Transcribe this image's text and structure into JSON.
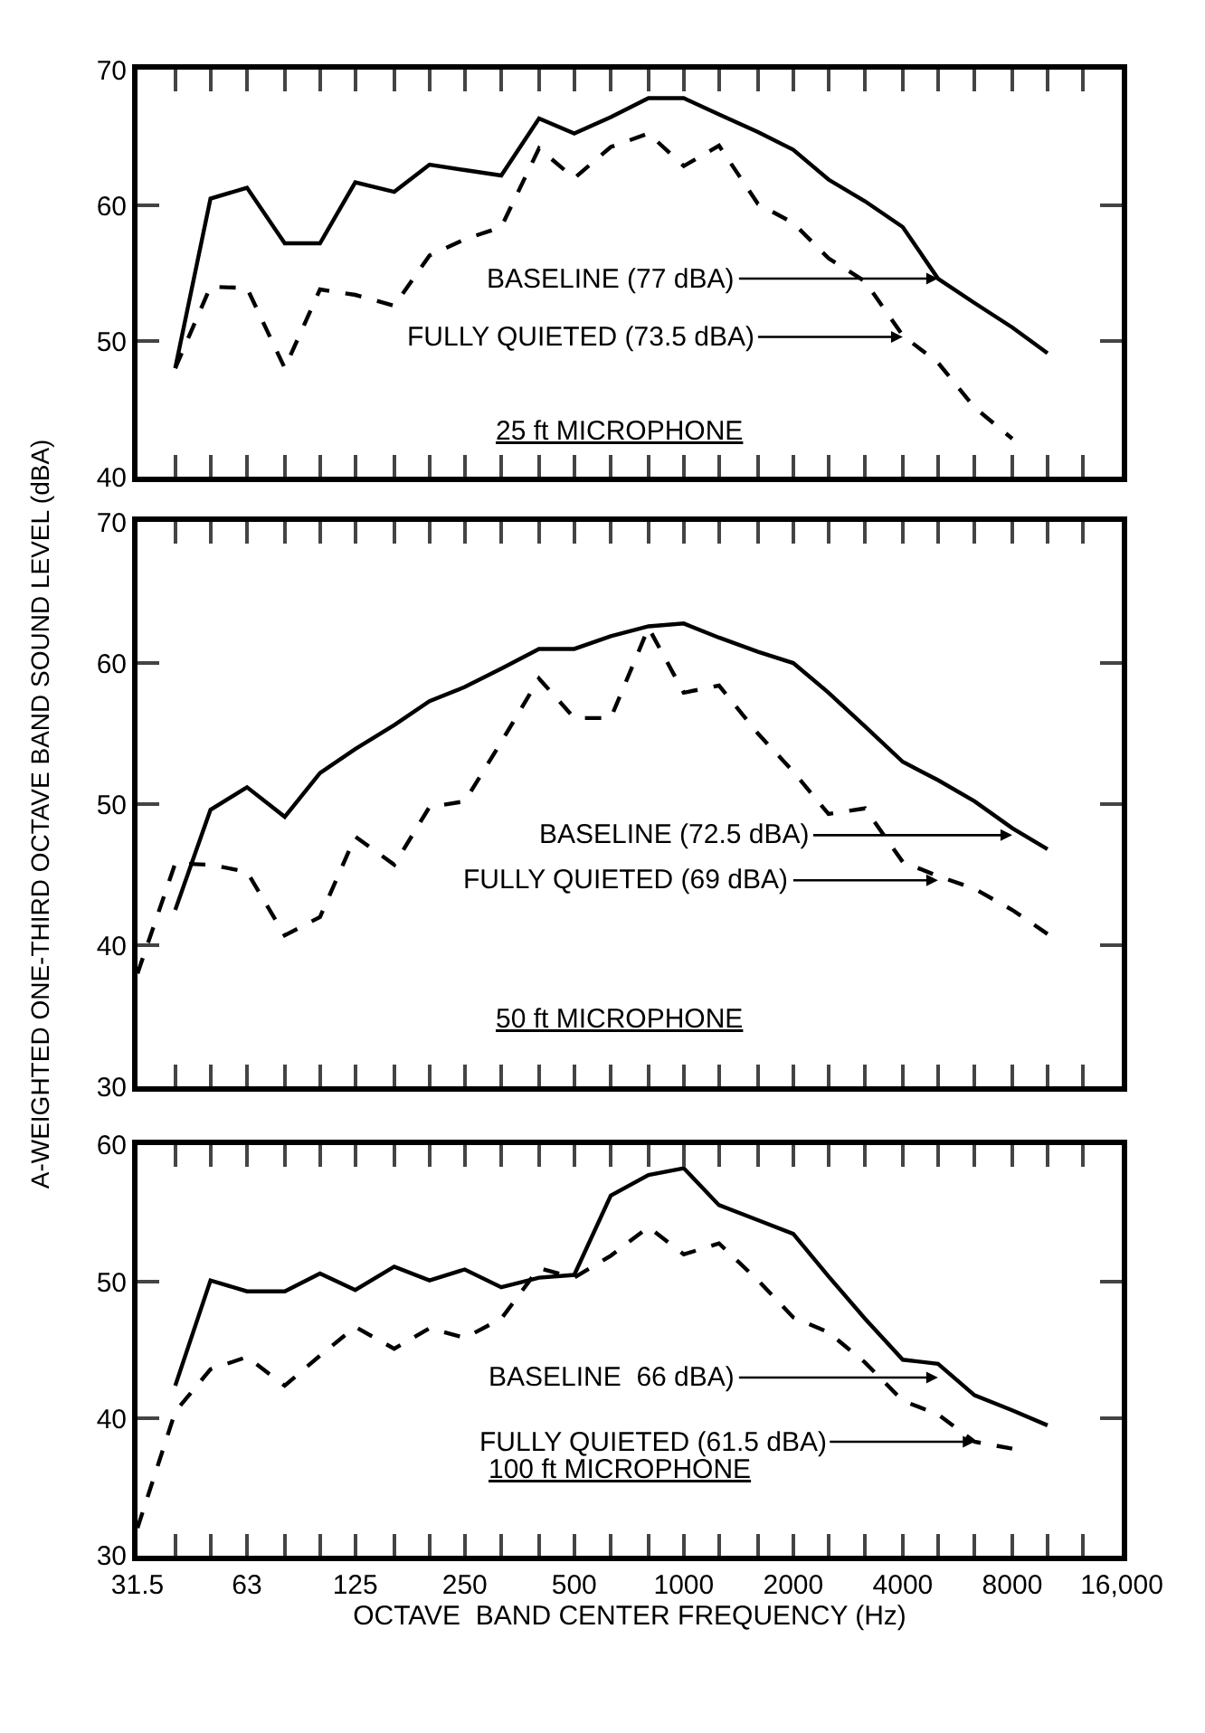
{
  "chart_data": [
    {
      "type": "line",
      "x": [
        40,
        50,
        63,
        80,
        100,
        125,
        160,
        200,
        250,
        315,
        400,
        500,
        630,
        800,
        1000,
        1250,
        1600,
        2000,
        2500,
        3150,
        4000,
        5000,
        6300,
        8000,
        10000
      ],
      "series": [
        {
          "color": "#000000",
          "line_style": "solid",
          "values": [
            48,
            60.5,
            61.3,
            57.2,
            57.2,
            61.7,
            61,
            63,
            62.6,
            62.2,
            66.4,
            65.3,
            66.5,
            67.9,
            67.9,
            66.7,
            65.4,
            64.1,
            61.9,
            60.3,
            58.4,
            54.6,
            52.8,
            51,
            49.1
          ]
        },
        {
          "color": "#000000",
          "line_style": "dashed",
          "values": [
            48,
            54,
            53.9,
            48,
            53.8,
            53.4,
            52.6,
            56.3,
            57.5,
            58.4,
            64.2,
            62,
            64.3,
            65.3,
            62.9,
            64.4,
            60.1,
            58.7,
            56.1,
            54.4,
            50.4,
            48.4,
            45.1,
            42.8,
            null
          ]
        }
      ],
      "xlim": [
        31.5,
        16000
      ],
      "log": "x",
      "ylim": [
        40,
        70
      ],
      "yticks": [
        40,
        50,
        60,
        70
      ],
      "xticks": [
        {
          "value": 31.5,
          "label": null
        },
        {
          "value": 40,
          "label": null
        },
        {
          "value": 50,
          "label": null
        },
        {
          "value": 63,
          "label": null
        },
        {
          "value": 80,
          "label": null
        },
        {
          "value": 100,
          "label": null
        },
        {
          "value": 125,
          "label": null
        },
        {
          "value": 160,
          "label": null
        },
        {
          "value": 200,
          "label": null
        },
        {
          "value": 250,
          "label": null
        },
        {
          "value": 315,
          "label": null
        },
        {
          "value": 400,
          "label": null
        },
        {
          "value": 500,
          "label": null
        },
        {
          "value": 630,
          "label": null
        },
        {
          "value": 800,
          "label": null
        },
        {
          "value": 1000,
          "label": null
        },
        {
          "value": 1250,
          "label": null
        },
        {
          "value": 1600,
          "label": null
        },
        {
          "value": 2000,
          "label": null
        },
        {
          "value": 2500,
          "label": null
        },
        {
          "value": 3150,
          "label": null
        },
        {
          "value": 4000,
          "label": null
        },
        {
          "value": 5000,
          "label": null
        },
        {
          "value": 6300,
          "label": null
        },
        {
          "value": 8000,
          "label": null
        },
        {
          "value": 10000,
          "label": null
        },
        {
          "value": 12500,
          "label": null
        },
        {
          "value": 16000,
          "label": null
        }
      ],
      "tick_labels": "y",
      "annotations": [
        {
          "text": "BASELINE (77 dBA)",
          "x": 5000,
          "y": 54.6
        },
        {
          "text": "FULLY QUIETED (73.5 dBA)",
          "x": 4000,
          "y": 50.3
        },
        "25 ft MICROPHONE"
      ]
    },
    {
      "type": "line",
      "x": [
        31.5,
        40,
        50,
        63,
        80,
        100,
        125,
        160,
        200,
        250,
        315,
        400,
        500,
        630,
        800,
        1000,
        1250,
        1600,
        2000,
        2500,
        3150,
        4000,
        5000,
        6300,
        8000,
        10000
      ],
      "ylabel": "A-WEIGHTED ONE-THIRD OCTAVE BAND SOUND LEVEL (dBA)",
      "series": [
        {
          "color": "#000000",
          "line_style": "solid",
          "values": [
            null,
            42.5,
            49.6,
            51.2,
            49.1,
            52.2,
            53.9,
            55.6,
            57.3,
            58.3,
            59.6,
            61,
            61,
            61.9,
            62.6,
            62.8,
            61.8,
            60.8,
            60,
            57.9,
            55.5,
            53,
            51.7,
            50.2,
            48.3,
            46.8
          ]
        },
        {
          "color": "#000000",
          "line_style": "dashed",
          "values": [
            38,
            45.8,
            45.7,
            45.2,
            40.7,
            42,
            47.7,
            45.7,
            49.8,
            50.2,
            54.4,
            58.9,
            56.1,
            56.1,
            62.5,
            57.9,
            58.4,
            55,
            52.3,
            49.3,
            49.7,
            45.9,
            44.9,
            44,
            42.5,
            40.8
          ]
        }
      ],
      "xlim": [
        31.5,
        16000
      ],
      "log": "x",
      "ylim": [
        30,
        70
      ],
      "yticks": [
        30,
        40,
        50,
        60,
        70
      ],
      "xticks": [
        {
          "value": 31.5,
          "label": null
        },
        {
          "value": 40,
          "label": null
        },
        {
          "value": 50,
          "label": null
        },
        {
          "value": 63,
          "label": null
        },
        {
          "value": 80,
          "label": null
        },
        {
          "value": 100,
          "label": null
        },
        {
          "value": 125,
          "label": null
        },
        {
          "value": 160,
          "label": null
        },
        {
          "value": 200,
          "label": null
        },
        {
          "value": 250,
          "label": null
        },
        {
          "value": 315,
          "label": null
        },
        {
          "value": 400,
          "label": null
        },
        {
          "value": 500,
          "label": null
        },
        {
          "value": 630,
          "label": null
        },
        {
          "value": 800,
          "label": null
        },
        {
          "value": 1000,
          "label": null
        },
        {
          "value": 1250,
          "label": null
        },
        {
          "value": 1600,
          "label": null
        },
        {
          "value": 2000,
          "label": null
        },
        {
          "value": 2500,
          "label": null
        },
        {
          "value": 3150,
          "label": null
        },
        {
          "value": 4000,
          "label": null
        },
        {
          "value": 5000,
          "label": null
        },
        {
          "value": 6300,
          "label": null
        },
        {
          "value": 8000,
          "label": null
        },
        {
          "value": 10000,
          "label": null
        },
        {
          "value": 12500,
          "label": null
        },
        {
          "value": 16000,
          "label": null
        }
      ],
      "tick_labels": "y",
      "annotations": [
        {
          "text": "BASELINE (72.5 dBA)",
          "x": 8000,
          "y": 47.8
        },
        {
          "text": "FULLY QUIETED (69 dBA)",
          "x": 5000,
          "y": 44.6
        },
        "50 ft MICROPHONE"
      ]
    },
    {
      "type": "line",
      "x": [
        31.5,
        40,
        50,
        63,
        80,
        100,
        125,
        160,
        200,
        250,
        315,
        400,
        500,
        630,
        800,
        1000,
        1250,
        1600,
        2000,
        2500,
        3150,
        4000,
        5000,
        6300,
        8000,
        10000
      ],
      "xlabel": "OCTAVE  BAND CENTER FREQUENCY (Hz)",
      "series": [
        {
          "color": "#000000",
          "line_style": "solid",
          "values": [
            null,
            42.4,
            50.1,
            49.3,
            49.3,
            50.6,
            49.4,
            51.1,
            50.1,
            50.9,
            49.6,
            50.3,
            50.5,
            56.3,
            57.8,
            58.3,
            55.6,
            54.5,
            53.5,
            50.4,
            47.3,
            44.3,
            44,
            41.7,
            40.6,
            39.5
          ]
        },
        {
          "color": "#000000",
          "line_style": "dashed",
          "values": [
            32,
            40.5,
            43.6,
            44.5,
            42.4,
            44.6,
            46.7,
            45.1,
            46.6,
            45.9,
            47.3,
            51,
            50.3,
            51.9,
            54,
            52,
            52.8,
            50.1,
            47.4,
            46.3,
            44.1,
            41.3,
            40.3,
            38.3,
            37.8,
            null
          ]
        }
      ],
      "xlim": [
        31.5,
        16000
      ],
      "log": "x",
      "ylim": [
        30,
        60
      ],
      "yticks": [
        30,
        40,
        50,
        60
      ],
      "xticks": [
        31.5,
        {
          "value": 40,
          "label": null
        },
        {
          "value": 50,
          "label": null
        },
        63,
        {
          "value": 80,
          "label": null
        },
        {
          "value": 100,
          "label": null
        },
        125,
        {
          "value": 160,
          "label": null
        },
        {
          "value": 200,
          "label": null
        },
        250,
        {
          "value": 315,
          "label": null
        },
        {
          "value": 400,
          "label": null
        },
        500,
        {
          "value": 630,
          "label": null
        },
        {
          "value": 800,
          "label": null
        },
        1000,
        {
          "value": 1250,
          "label": null
        },
        {
          "value": 1600,
          "label": null
        },
        2000,
        {
          "value": 2500,
          "label": null
        },
        {
          "value": 3150,
          "label": null
        },
        4000,
        {
          "value": 5000,
          "label": null
        },
        {
          "value": 6300,
          "label": null
        },
        8000,
        {
          "value": 10000,
          "label": null
        },
        {
          "value": 12500,
          "label": null
        },
        {
          "value": 16000,
          "label": "16,000"
        }
      ],
      "annotations": [
        {
          "text": "BASELINE  66 dBA)",
          "x": 5000,
          "y": 43
        },
        {
          "text": "FULLY QUIETED (61.5 dBA)",
          "x": 6300,
          "y": 38.3
        },
        "100 ft MICROPHONE"
      ]
    }
  ]
}
